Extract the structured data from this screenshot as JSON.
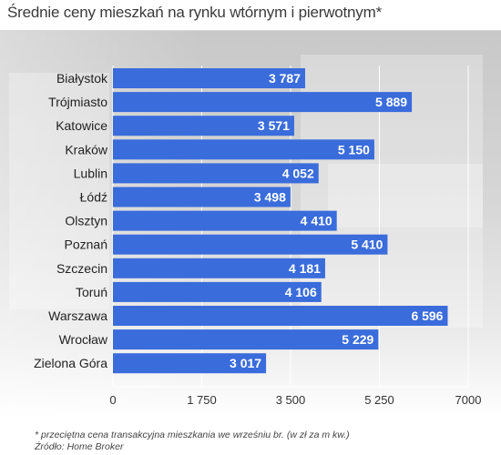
{
  "header": {
    "title": "Średnie ceny mieszkań na rynku wtórnym i pierwotnym*"
  },
  "footer": {
    "footnote": "* przeciętna cena transakcyjna mieszkania we wrześniu br. (w zł za m kw.)",
    "source": "Źródło: Home Broker"
  },
  "colors": {
    "bar": "#3a6cdb",
    "grid": "#ffffff"
  },
  "chart_data": {
    "type": "bar",
    "orientation": "horizontal",
    "title": "Średnie ceny mieszkań na rynku wtórnym i pierwotnym*",
    "categories": [
      "Białystok",
      "Trójmiasto",
      "Katowice",
      "Kraków",
      "Lublin",
      "Łódź",
      "Olsztyn",
      "Poznań",
      "Szczecin",
      "Toruń",
      "Warszawa",
      "Wrocław",
      "Zielona Góra"
    ],
    "values": [
      3787,
      5889,
      3571,
      5150,
      4052,
      3498,
      4410,
      5410,
      4181,
      4106,
      6596,
      5229,
      3017
    ],
    "value_labels": [
      "3 787",
      "5 889",
      "3 571",
      "5 150",
      "4 052",
      "3 498",
      "4 410",
      "5 410",
      "4 181",
      "4 106",
      "6 596",
      "5 229",
      "3 017"
    ],
    "xlim": [
      0,
      7000
    ],
    "xticks": [
      0,
      1750,
      3500,
      5250,
      7000
    ],
    "xtick_labels": [
      "0",
      "1 750",
      "3 500",
      "5 250",
      "7000"
    ],
    "grid": true
  }
}
